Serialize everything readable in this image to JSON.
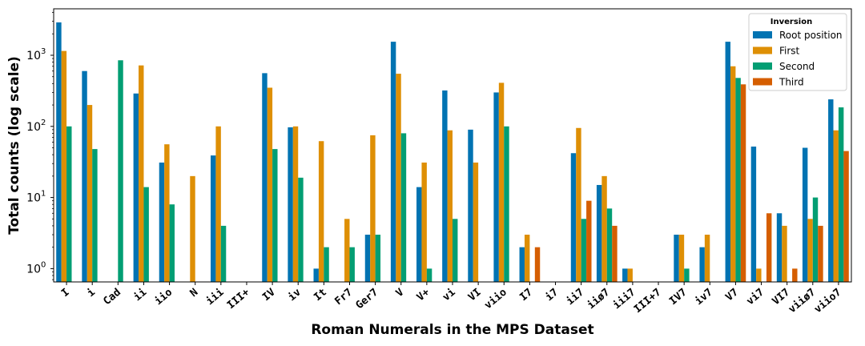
{
  "chart_data": {
    "type": "bar",
    "title": "",
    "xlabel": "Roman Numerals in the MPS Dataset",
    "ylabel": "Total counts (log scale)",
    "yscale": "log",
    "ylim": [
      0.65,
      4500
    ],
    "yticks": [
      {
        "value": 1,
        "label": "10",
        "exp": "0"
      },
      {
        "value": 10,
        "label": "10",
        "exp": "1"
      },
      {
        "value": 100,
        "label": "10",
        "exp": "2"
      },
      {
        "value": 1000,
        "label": "10",
        "exp": "3"
      }
    ],
    "grid": false,
    "legend": {
      "title": "Inversion",
      "position": "top-right"
    },
    "categories": [
      "I",
      "i",
      "Cad",
      "ii",
      "iio",
      "N",
      "iii",
      "III+",
      "IV",
      "iv",
      "It",
      "Fr7",
      "Ger7",
      "V",
      "V+",
      "vi",
      "VI",
      "viio",
      "I7",
      "i7",
      "ii7",
      "iiø7",
      "iii7",
      "III+7",
      "IV7",
      "iv7",
      "V7",
      "vi7",
      "VI7",
      "viiø7",
      "viio7"
    ],
    "series": [
      {
        "name": "Root position",
        "color": "#0173b2",
        "values": [
          2900,
          600,
          null,
          290,
          31,
          null,
          39,
          null,
          560,
          97,
          1,
          null,
          3,
          1550,
          14,
          320,
          90,
          300,
          2,
          null,
          42,
          15,
          1,
          null,
          3,
          2,
          1550,
          52,
          6,
          50,
          240
        ]
      },
      {
        "name": "First",
        "color": "#de8f05",
        "values": [
          1150,
          200,
          null,
          720,
          56,
          20,
          100,
          null,
          350,
          100,
          62,
          5,
          75,
          550,
          31,
          88,
          31,
          410,
          3,
          null,
          95,
          20,
          1,
          null,
          3,
          3,
          700,
          1,
          4,
          5,
          88
        ]
      },
      {
        "name": "Second",
        "color": "#029e73",
        "values": [
          100,
          48,
          850,
          14,
          8,
          null,
          4,
          null,
          48,
          19,
          2,
          2,
          3,
          80,
          1,
          5,
          null,
          100,
          null,
          null,
          5,
          7,
          null,
          null,
          1,
          null,
          480,
          null,
          null,
          10,
          185
        ]
      },
      {
        "name": "Third",
        "color": "#d55e00",
        "values": [
          null,
          null,
          null,
          null,
          null,
          null,
          null,
          null,
          null,
          null,
          null,
          null,
          null,
          null,
          null,
          null,
          null,
          null,
          2,
          null,
          9,
          4,
          null,
          null,
          null,
          null,
          390,
          6,
          1,
          4,
          45
        ]
      }
    ]
  }
}
